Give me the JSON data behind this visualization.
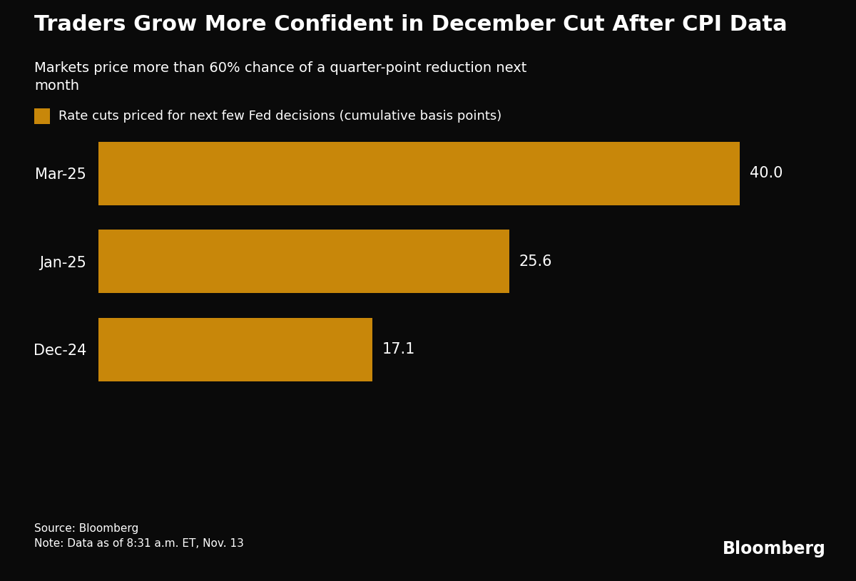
{
  "title": "Traders Grow More Confident in December Cut After CPI Data",
  "subtitle": "Markets price more than 60% chance of a quarter-point reduction next\nmonth",
  "legend_label": "Rate cuts priced for next few Fed decisions (cumulative basis points)",
  "categories": [
    "Dec-24",
    "Jan-25",
    "Mar-25"
  ],
  "values": [
    17.1,
    25.6,
    40.0
  ],
  "bar_color": "#C8870A",
  "background_color": "#0a0a0a",
  "text_color": "#ffffff",
  "source_text": "Source: Bloomberg\nNote: Data as of 8:31 a.m. ET, Nov. 13",
  "bloomberg_logo": "Bloomberg",
  "xlim": [
    0,
    43.5
  ],
  "title_fontsize": 22,
  "subtitle_fontsize": 14,
  "legend_fontsize": 13,
  "tick_fontsize": 15,
  "value_fontsize": 15,
  "source_fontsize": 11,
  "bloomberg_fontsize": 17,
  "bar_height": 0.72
}
